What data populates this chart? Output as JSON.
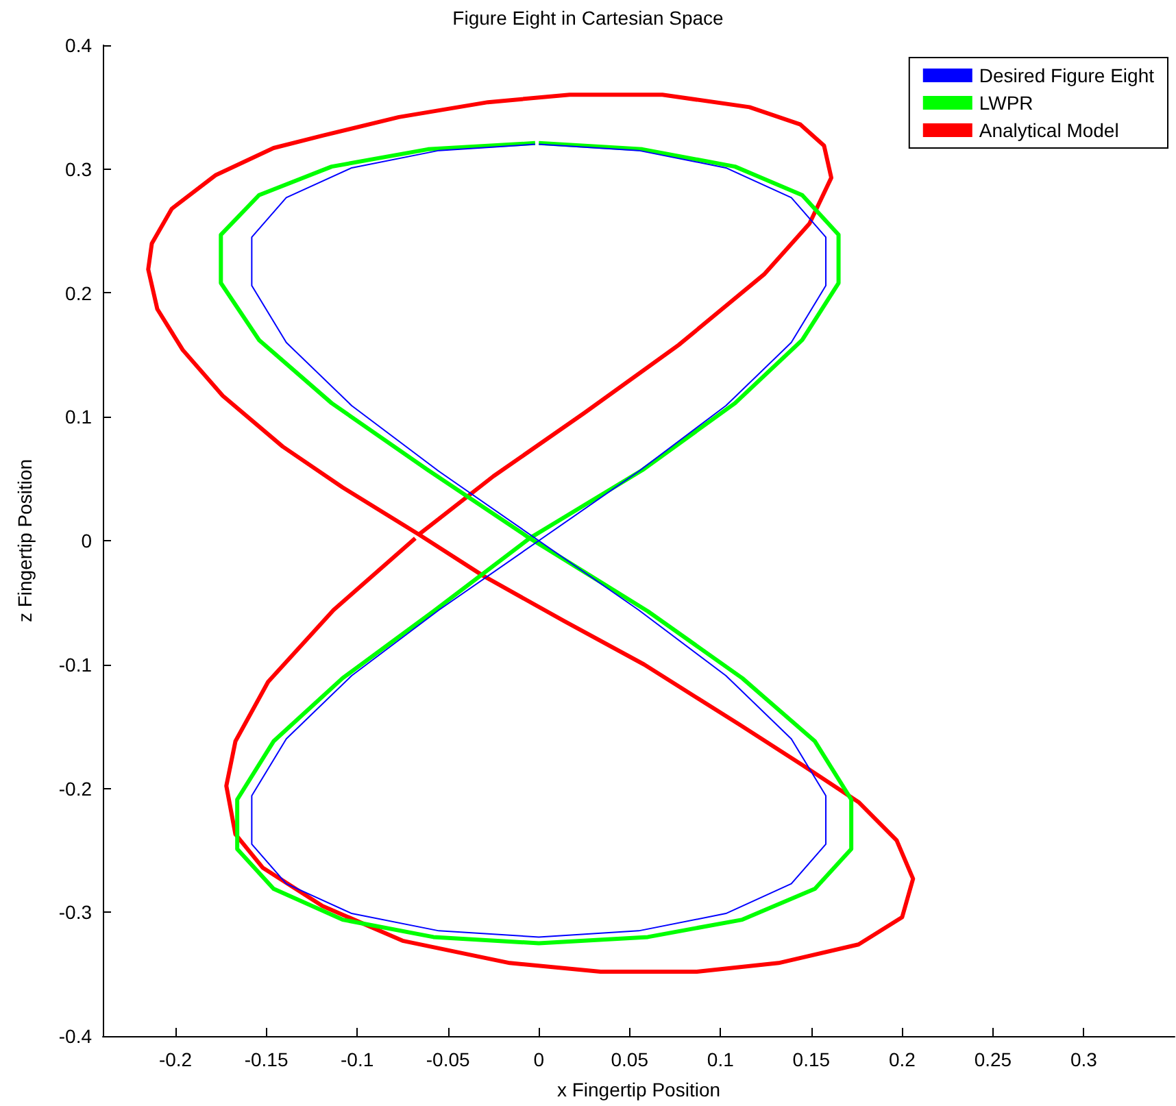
{
  "chart_data": {
    "type": "line",
    "title": "Figure Eight in Cartesian Space",
    "xlabel": "x Fingertip Position",
    "ylabel": "z Fingertip Position",
    "xlim": [
      -0.24,
      0.35
    ],
    "xticks": [
      -0.2,
      -0.15,
      -0.1,
      -0.05,
      0,
      0.05,
      0.1,
      0.15,
      0.2,
      0.25,
      0.3
    ],
    "ylim": [
      -0.4,
      0.4
    ],
    "yticks": [
      -0.4,
      -0.3,
      -0.2,
      -0.1,
      0,
      0.1,
      0.2,
      0.3,
      0.4
    ],
    "grid": false,
    "legend": "top right",
    "marker": "none",
    "line_style": "solid",
    "series": [
      {
        "name": "Desired Figure Eight",
        "color": "#0000ff",
        "x": [
          0,
          0.055,
          0.103,
          0.139,
          0.158,
          0.158,
          0.139,
          0.103,
          0.055,
          0,
          -0.055,
          -0.103,
          -0.139,
          -0.158,
          -0.158,
          -0.139,
          -0.103,
          -0.055,
          0,
          0.055,
          0.103,
          0.139,
          0.158,
          0.158,
          0.139,
          0.103,
          0.055,
          0,
          -0.055,
          -0.103,
          -0.139,
          -0.158,
          -0.158,
          -0.139,
          -0.103,
          -0.055,
          -0.002
        ],
        "values": [
          0.32,
          0.315,
          0.301,
          0.277,
          0.245,
          0.206,
          0.16,
          0.109,
          0.056,
          0,
          -0.056,
          -0.109,
          -0.16,
          -0.206,
          -0.245,
          -0.277,
          -0.301,
          -0.315,
          -0.32,
          -0.315,
          -0.301,
          -0.277,
          -0.245,
          -0.206,
          -0.16,
          -0.109,
          -0.056,
          0,
          0.056,
          0.109,
          0.16,
          0.206,
          0.245,
          0.277,
          0.301,
          0.315,
          0.32
        ]
      },
      {
        "name": "LWPR",
        "color": "#00ff00",
        "x": [
          0,
          0.057,
          0.108,
          0.145,
          0.165,
          0.165,
          0.145,
          0.108,
          0.057,
          -0.005,
          -0.058,
          -0.108,
          -0.146,
          -0.166,
          -0.166,
          -0.146,
          -0.108,
          -0.058,
          0,
          0.06,
          0.112,
          0.152,
          0.172,
          0.172,
          0.152,
          0.112,
          0.06,
          -0.005,
          -0.061,
          -0.114,
          -0.154,
          -0.175,
          -0.175,
          -0.154,
          -0.114,
          -0.061,
          -0.002
        ],
        "values": [
          0.321,
          0.316,
          0.302,
          0.279,
          0.247,
          0.208,
          0.162,
          0.111,
          0.057,
          0.002,
          -0.057,
          -0.111,
          -0.162,
          -0.209,
          -0.249,
          -0.281,
          -0.306,
          -0.32,
          -0.325,
          -0.32,
          -0.306,
          -0.281,
          -0.249,
          -0.209,
          -0.162,
          -0.111,
          -0.057,
          0.002,
          0.057,
          0.111,
          0.162,
          0.208,
          0.247,
          0.279,
          0.302,
          0.316,
          0.321
        ]
      },
      {
        "name": "Analytical Model",
        "color": "#ff0000",
        "x": [
          -0.066,
          -0.025,
          0.025,
          0.077,
          0.124,
          0.149,
          0.161,
          0.157,
          0.144,
          0.116,
          0.068,
          0.017,
          -0.028,
          -0.077,
          -0.119,
          -0.146,
          -0.178,
          -0.202,
          -0.213,
          -0.215,
          -0.21,
          -0.196,
          -0.174,
          -0.141,
          -0.108,
          -0.066,
          -0.031,
          0.014,
          0.058,
          0.111,
          0.146,
          0.176,
          0.197,
          0.206,
          0.2,
          0.176,
          0.132,
          0.087,
          0.034,
          -0.016,
          -0.075,
          -0.119,
          -0.152,
          -0.167,
          -0.172,
          -0.167,
          -0.149,
          -0.113,
          -0.068
        ],
        "values": [
          0.005,
          0.052,
          0.103,
          0.158,
          0.215,
          0.256,
          0.293,
          0.319,
          0.336,
          0.35,
          0.36,
          0.36,
          0.354,
          0.342,
          0.327,
          0.317,
          0.295,
          0.268,
          0.24,
          0.219,
          0.187,
          0.154,
          0.117,
          0.076,
          0.043,
          0.005,
          -0.028,
          -0.065,
          -0.1,
          -0.149,
          -0.182,
          -0.211,
          -0.242,
          -0.273,
          -0.304,
          -0.326,
          -0.341,
          -0.348,
          -0.348,
          -0.341,
          -0.323,
          -0.295,
          -0.264,
          -0.237,
          -0.198,
          -0.162,
          -0.114,
          -0.056,
          0.002
        ]
      }
    ]
  }
}
